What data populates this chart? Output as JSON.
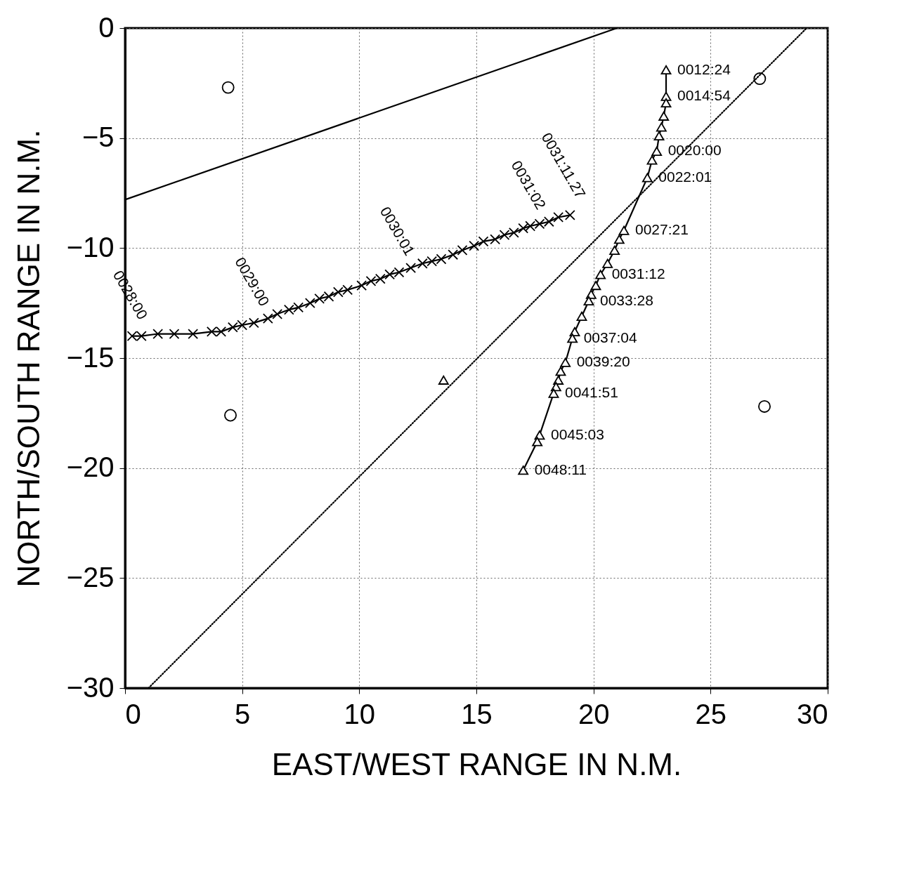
{
  "chart_data": {
    "type": "line",
    "xlabel": "EAST/WEST RANGE IN N.M.",
    "ylabel": "NORTH/SOUTH RANGE IN N.M.",
    "xlim": [
      0,
      30
    ],
    "ylim": [
      -30,
      0
    ],
    "xticks": [
      0,
      5,
      10,
      15,
      20,
      25,
      30
    ],
    "yticks": [
      -30,
      -25,
      -20,
      -15,
      -10,
      -5,
      0
    ],
    "grid": true,
    "series": [
      {
        "type": "line",
        "color": "#000000",
        "line_style": "solid",
        "marker": "none",
        "x": [
          0,
          21
        ],
        "values": [
          -7.8,
          0
        ]
      },
      {
        "type": "line",
        "color": "#000000",
        "line_style": "dotted",
        "marker": "none",
        "x": [
          1,
          29.1
        ],
        "values": [
          -30,
          0
        ]
      },
      {
        "type": "scatter",
        "color": "#000000",
        "marker": "triangle",
        "x": [
          13.6
        ],
        "values": [
          -16.0
        ]
      },
      {
        "type": "scatter",
        "color": "#000000",
        "marker": "circle",
        "x": [
          4.4,
          27.1,
          4.5,
          27.3
        ],
        "values": [
          -2.7,
          -2.3,
          -17.6,
          -17.2
        ]
      },
      {
        "type": "line",
        "color": "#000000",
        "line_style": "solid",
        "marker": "cross",
        "x": [
          0.3,
          0.7,
          1.4,
          2.1,
          2.9,
          3.7,
          4.1,
          4.6,
          5.0,
          5.5,
          6.1,
          6.5,
          7.0,
          7.4,
          7.9,
          8.3,
          8.7,
          9.1,
          9.5,
          10.1,
          10.5,
          10.9,
          11.3,
          11.7,
          12.2,
          12.7,
          13.1,
          13.5,
          14.0,
          14.4,
          14.9,
          15.3,
          15.8,
          16.2,
          16.6,
          17.0,
          17.3,
          17.7,
          18.1,
          18.5,
          19.0
        ],
        "values": [
          -14.0,
          -14.0,
          -13.9,
          -13.9,
          -13.9,
          -13.8,
          -13.8,
          -13.6,
          -13.5,
          -13.4,
          -13.2,
          -13.0,
          -12.8,
          -12.7,
          -12.5,
          -12.3,
          -12.2,
          -12.0,
          -11.9,
          -11.7,
          -11.5,
          -11.4,
          -11.2,
          -11.1,
          -10.9,
          -10.7,
          -10.6,
          -10.5,
          -10.3,
          -10.1,
          -9.9,
          -9.7,
          -9.6,
          -9.4,
          -9.3,
          -9.1,
          -9.0,
          -8.9,
          -8.8,
          -8.6,
          -8.5
        ]
      },
      {
        "type": "line",
        "color": "#000000",
        "line_style": "solid",
        "marker": "triangle",
        "x": [
          23.1,
          23.1,
          23.1,
          23.0,
          22.9,
          22.8,
          22.7,
          22.5,
          22.3,
          21.3,
          21.1,
          20.9,
          20.6,
          20.3,
          20.1,
          19.9,
          19.8,
          19.5,
          19.2,
          19.1,
          18.8,
          18.6,
          18.5,
          18.4,
          18.3,
          17.7,
          17.6,
          17.0
        ],
        "values": [
          -1.9,
          -3.1,
          -3.4,
          -4.0,
          -4.5,
          -4.9,
          -5.6,
          -6.0,
          -6.8,
          -9.2,
          -9.6,
          -10.1,
          -10.7,
          -11.2,
          -11.7,
          -12.1,
          -12.4,
          -13.1,
          -13.8,
          -14.1,
          -15.2,
          -15.6,
          -16.0,
          -16.3,
          -16.6,
          -18.5,
          -18.8,
          -20.1
        ]
      }
    ],
    "annotations": [
      {
        "text": "0028:00",
        "x": 0.3,
        "y": -14.0
      },
      {
        "text": "0029:00",
        "x": 5.5,
        "y": -13.4
      },
      {
        "text": "0030:01",
        "x": 11.7,
        "y": -11.1
      },
      {
        "text": "0031:02",
        "x": 17.3,
        "y": -9.0
      },
      {
        "text": "0031:11.27",
        "x": 19.0,
        "y": -8.5
      },
      {
        "text": "0012:24",
        "x": 23.1,
        "y": -1.9
      },
      {
        "text": "0014:54",
        "x": 23.1,
        "y": -3.1
      },
      {
        "text": "0020:00",
        "x": 22.7,
        "y": -5.6
      },
      {
        "text": "0022:01",
        "x": 22.3,
        "y": -6.8
      },
      {
        "text": "0027:21",
        "x": 21.3,
        "y": -9.2
      },
      {
        "text": "0031:12",
        "x": 20.3,
        "y": -11.2
      },
      {
        "text": "0033:28",
        "x": 19.8,
        "y": -12.4
      },
      {
        "text": "0037:04",
        "x": 19.1,
        "y": -14.1
      },
      {
        "text": "0039:20",
        "x": 18.8,
        "y": -15.2
      },
      {
        "text": "0041:51",
        "x": 18.3,
        "y": -16.6
      },
      {
        "text": "0045:03",
        "x": 17.7,
        "y": -18.5
      },
      {
        "text": "0048:11",
        "x": 17.0,
        "y": -20.1
      }
    ]
  }
}
